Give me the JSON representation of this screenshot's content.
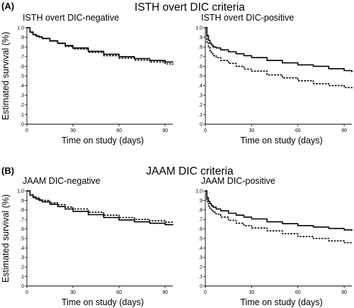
{
  "figure": {
    "sections": [
      {
        "letter": "(A)",
        "title": "ISTH overt DIC criteria"
      },
      {
        "letter": "(B)",
        "title": "JAAM DIC criteria"
      }
    ],
    "ylabel": "Estimated survival (%)",
    "xlabel": "Time on study (days)"
  },
  "chart_data": [
    {
      "type": "line",
      "title": "ISTH overt DIC-negative",
      "xlabel": "Time on study (days)",
      "ylabel": "Estimated survival (%)",
      "xlim": [
        0,
        95
      ],
      "ylim": [
        0,
        1.0
      ],
      "xticks": [
        0,
        30,
        60,
        90
      ],
      "yticks": [
        0,
        0.1,
        0.2,
        0.3,
        0.4,
        0.5,
        0.6,
        0.7,
        0.8,
        0.9,
        1.0
      ],
      "ytick_labels": [
        "0",
        ".1",
        ".2",
        ".3",
        ".4",
        ".5",
        ".6",
        ".7",
        ".8",
        ".9",
        "1.0"
      ],
      "series": [
        {
          "style": "solid",
          "x": [
            0,
            2,
            4,
            6,
            8,
            10,
            15,
            20,
            25,
            30,
            40,
            50,
            60,
            70,
            80,
            90,
            95
          ],
          "y": [
            1.0,
            0.955,
            0.93,
            0.915,
            0.905,
            0.89,
            0.865,
            0.84,
            0.815,
            0.79,
            0.755,
            0.725,
            0.7,
            0.68,
            0.66,
            0.645,
            0.64
          ]
        },
        {
          "style": "dashed",
          "x": [
            0,
            2,
            4,
            6,
            8,
            10,
            15,
            20,
            25,
            30,
            40,
            50,
            60,
            70,
            80,
            90,
            95
          ],
          "y": [
            1.0,
            0.95,
            0.925,
            0.91,
            0.9,
            0.885,
            0.86,
            0.835,
            0.805,
            0.78,
            0.745,
            0.71,
            0.685,
            0.665,
            0.645,
            0.625,
            0.615
          ]
        }
      ]
    },
    {
      "type": "line",
      "title": "ISTH overt DIC-positive",
      "xlabel": "Time on study (days)",
      "ylabel": "",
      "xlim": [
        0,
        95
      ],
      "ylim": [
        0,
        1.0
      ],
      "xticks": [
        0,
        30,
        60,
        90
      ],
      "yticks": [
        0,
        0.1,
        0.2,
        0.3,
        0.4,
        0.5,
        0.6,
        0.7,
        0.8,
        0.9,
        1.0
      ],
      "ytick_labels": [
        "0",
        ".1",
        ".2",
        ".3",
        ".4",
        ".5",
        ".6",
        ".7",
        ".8",
        ".9",
        "1.0"
      ],
      "series": [
        {
          "style": "solid",
          "x": [
            0,
            1,
            2,
            3,
            4,
            5,
            7,
            10,
            15,
            20,
            25,
            30,
            40,
            50,
            60,
            70,
            80,
            90,
            95
          ],
          "y": [
            1.0,
            0.92,
            0.87,
            0.84,
            0.82,
            0.8,
            0.79,
            0.77,
            0.75,
            0.73,
            0.71,
            0.69,
            0.66,
            0.635,
            0.615,
            0.6,
            0.575,
            0.555,
            0.54
          ]
        },
        {
          "style": "dashed",
          "x": [
            0,
            1,
            2,
            3,
            4,
            5,
            7,
            10,
            15,
            20,
            25,
            30,
            40,
            50,
            60,
            70,
            80,
            90,
            95
          ],
          "y": [
            1.0,
            0.85,
            0.8,
            0.76,
            0.73,
            0.71,
            0.69,
            0.66,
            0.63,
            0.6,
            0.57,
            0.55,
            0.51,
            0.48,
            0.45,
            0.42,
            0.4,
            0.38,
            0.365
          ]
        }
      ]
    },
    {
      "type": "line",
      "title": "JAAM DIC-negative",
      "xlabel": "Time on study (days)",
      "ylabel": "Estimated survival (%)",
      "xlim": [
        0,
        95
      ],
      "ylim": [
        0,
        1.0
      ],
      "xticks": [
        0,
        30,
        60,
        90
      ],
      "yticks": [
        0,
        0.1,
        0.2,
        0.3,
        0.4,
        0.5,
        0.6,
        0.7,
        0.8,
        0.9,
        1.0
      ],
      "ytick_labels": [
        "0",
        ".1",
        ".2",
        ".3",
        ".4",
        ".5",
        ".6",
        ".7",
        ".8",
        ".9",
        "1.0"
      ],
      "series": [
        {
          "style": "solid",
          "x": [
            0,
            2,
            4,
            6,
            8,
            10,
            15,
            20,
            25,
            30,
            40,
            50,
            60,
            70,
            80,
            90,
            95
          ],
          "y": [
            1.0,
            0.955,
            0.93,
            0.915,
            0.9,
            0.885,
            0.86,
            0.835,
            0.81,
            0.785,
            0.75,
            0.72,
            0.695,
            0.675,
            0.66,
            0.645,
            0.64
          ]
        },
        {
          "style": "dashed",
          "x": [
            0,
            2,
            4,
            6,
            8,
            10,
            15,
            20,
            25,
            30,
            40,
            50,
            60,
            70,
            80,
            90,
            95
          ],
          "y": [
            1.0,
            0.96,
            0.94,
            0.925,
            0.91,
            0.9,
            0.875,
            0.855,
            0.83,
            0.81,
            0.775,
            0.745,
            0.72,
            0.7,
            0.685,
            0.67,
            0.665
          ]
        }
      ]
    },
    {
      "type": "line",
      "title": "JAAM DIC-positive",
      "xlabel": "Time on study (days)",
      "ylabel": "",
      "xlim": [
        0,
        95
      ],
      "ylim": [
        0,
        1.0
      ],
      "xticks": [
        0,
        30,
        60,
        90
      ],
      "yticks": [
        0,
        0.1,
        0.2,
        0.3,
        0.4,
        0.5,
        0.6,
        0.7,
        0.8,
        0.9,
        1.0
      ],
      "ytick_labels": [
        "0",
        ".1",
        ".2",
        ".3",
        ".4",
        ".5",
        ".6",
        ".7",
        ".8",
        ".9",
        "1.0"
      ],
      "series": [
        {
          "style": "solid",
          "x": [
            0,
            1,
            2,
            3,
            4,
            5,
            7,
            10,
            15,
            20,
            25,
            30,
            40,
            50,
            60,
            70,
            80,
            90,
            95
          ],
          "y": [
            1.0,
            0.93,
            0.89,
            0.865,
            0.845,
            0.83,
            0.81,
            0.79,
            0.765,
            0.745,
            0.725,
            0.705,
            0.675,
            0.655,
            0.635,
            0.62,
            0.605,
            0.59,
            0.58
          ]
        },
        {
          "style": "dashed",
          "x": [
            0,
            1,
            2,
            3,
            4,
            5,
            7,
            10,
            15,
            20,
            25,
            30,
            40,
            50,
            60,
            70,
            80,
            90,
            95
          ],
          "y": [
            1.0,
            0.89,
            0.84,
            0.81,
            0.79,
            0.775,
            0.755,
            0.725,
            0.69,
            0.66,
            0.635,
            0.61,
            0.58,
            0.55,
            0.52,
            0.5,
            0.475,
            0.455,
            0.445
          ]
        }
      ]
    }
  ]
}
